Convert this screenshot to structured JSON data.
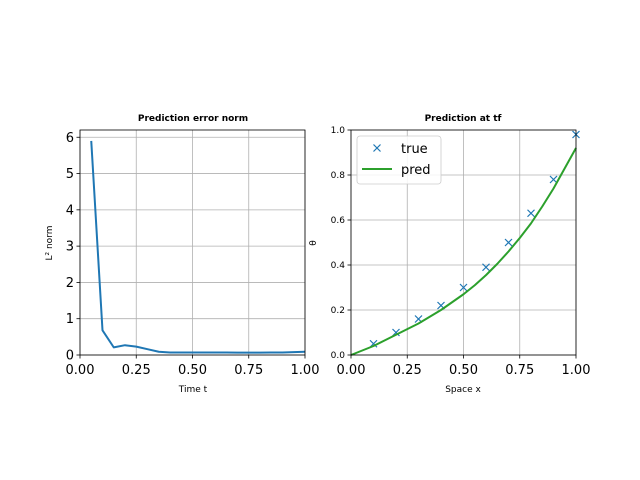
{
  "chart_data": [
    {
      "type": "line",
      "title": "Prediction error norm",
      "xlabel": "Time t",
      "ylabel": "L² norm",
      "xlim": [
        0.0,
        1.0
      ],
      "ylim": [
        0,
        6.2
      ],
      "xticks": [
        "0.00",
        "0.25",
        "0.50",
        "0.75",
        "1.00"
      ],
      "yticks": [
        "0",
        "1",
        "2",
        "3",
        "4",
        "5",
        "6"
      ],
      "grid": true,
      "series": [
        {
          "color": "#1f77b4",
          "x": [
            0.05,
            0.1,
            0.15,
            0.2,
            0.25,
            0.3,
            0.35,
            0.4,
            0.45,
            0.5,
            0.55,
            0.6,
            0.65,
            0.7,
            0.75,
            0.8,
            0.85,
            0.9,
            0.95,
            1.0
          ],
          "y": [
            5.9,
            0.68,
            0.21,
            0.27,
            0.23,
            0.16,
            0.09,
            0.07,
            0.07,
            0.07,
            0.07,
            0.07,
            0.07,
            0.065,
            0.065,
            0.065,
            0.07,
            0.07,
            0.08,
            0.09
          ]
        }
      ]
    },
    {
      "type": "line",
      "title": "Prediction at tf",
      "xlabel": "Space x",
      "ylabel": "θ",
      "xlim": [
        0.0,
        1.0
      ],
      "ylim": [
        0.0,
        1.0
      ],
      "xticks": [
        "0.00",
        "0.25",
        "0.50",
        "0.75",
        "1.00"
      ],
      "yticks": [
        "0.0",
        "0.2",
        "0.4",
        "0.6",
        "0.8",
        "1.0"
      ],
      "grid": true,
      "legend_position": "top-left",
      "series": [
        {
          "name": "true",
          "marker": "x",
          "color": "#1f77b4",
          "x": [
            0.1,
            0.2,
            0.3,
            0.4,
            0.5,
            0.6,
            0.7,
            0.8,
            0.9,
            1.0
          ],
          "y": [
            0.05,
            0.1,
            0.16,
            0.22,
            0.3,
            0.39,
            0.5,
            0.63,
            0.78,
            0.98
          ]
        },
        {
          "name": "pred",
          "color": "#2ca02c",
          "x": [
            0.0,
            0.05,
            0.1,
            0.15,
            0.2,
            0.25,
            0.3,
            0.35,
            0.4,
            0.45,
            0.5,
            0.55,
            0.6,
            0.65,
            0.7,
            0.75,
            0.8,
            0.85,
            0.9,
            0.95,
            1.0
          ],
          "y": [
            0.0,
            0.02,
            0.04,
            0.065,
            0.09,
            0.115,
            0.14,
            0.17,
            0.2,
            0.235,
            0.27,
            0.31,
            0.355,
            0.405,
            0.46,
            0.52,
            0.585,
            0.66,
            0.74,
            0.83,
            0.92
          ]
        }
      ]
    }
  ]
}
